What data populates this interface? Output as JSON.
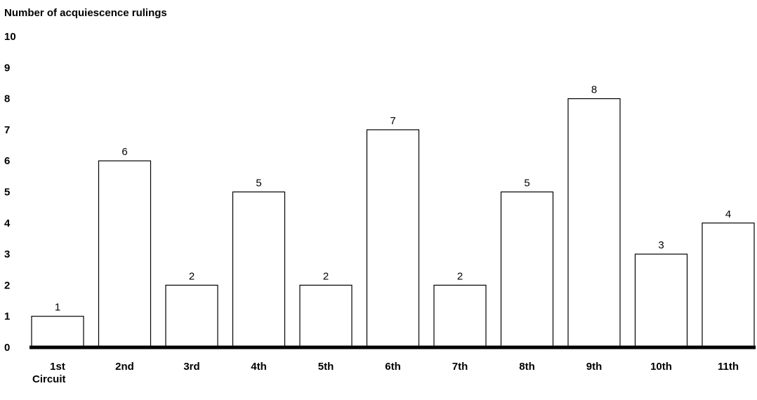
{
  "chart_data": {
    "type": "bar",
    "ylabel": "Number of acquiescence rulings",
    "xlabel": "Circuit",
    "categories": [
      "1st",
      "2nd",
      "3rd",
      "4th",
      "5th",
      "6th",
      "7th",
      "8th",
      "9th",
      "10th",
      "11th"
    ],
    "values": [
      1,
      6,
      2,
      5,
      2,
      7,
      2,
      5,
      8,
      3,
      4
    ],
    "ylim": [
      0,
      10
    ],
    "yticks": [
      0,
      1,
      2,
      3,
      4,
      5,
      6,
      7,
      8,
      9,
      10
    ],
    "grid": false,
    "legend": "none",
    "colors": {
      "bar_fill": "#ffffff",
      "bar_stroke": "#000000",
      "baseline": "#000000"
    }
  }
}
